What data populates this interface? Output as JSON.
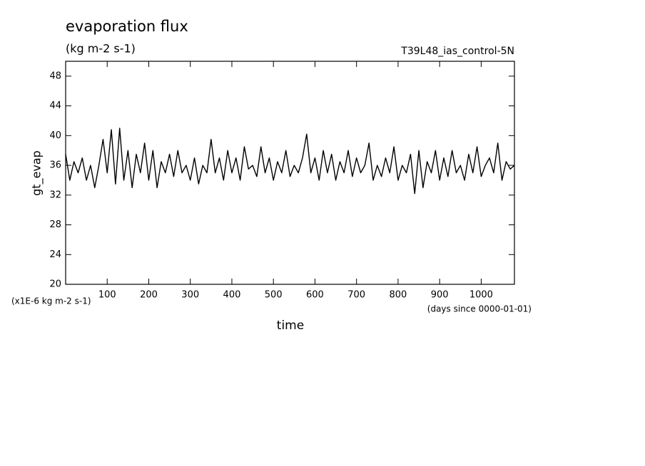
{
  "chart_data": {
    "type": "line",
    "title": "evaporation flux",
    "subtitle": "(kg m-2 s-1)",
    "annotation": "T39L48_ias_control-5N",
    "y_label": "gt_evap",
    "y_unit_label": "(x1E-6 kg m-2 s-1)",
    "x_label": "time",
    "x_unit_label": "(days since 0000-01-01)",
    "x": [
      0,
      10,
      20,
      30,
      40,
      50,
      60,
      70,
      80,
      90,
      100,
      110,
      120,
      130,
      140,
      150,
      160,
      170,
      180,
      190,
      200,
      210,
      220,
      230,
      240,
      250,
      260,
      270,
      280,
      290,
      300,
      310,
      320,
      330,
      340,
      350,
      360,
      370,
      380,
      390,
      400,
      410,
      420,
      430,
      440,
      450,
      460,
      470,
      480,
      490,
      500,
      510,
      520,
      530,
      540,
      550,
      560,
      570,
      580,
      590,
      600,
      610,
      620,
      630,
      640,
      650,
      660,
      670,
      680,
      690,
      700,
      710,
      720,
      730,
      740,
      750,
      760,
      770,
      780,
      790,
      800,
      810,
      820,
      830,
      840,
      850,
      860,
      870,
      880,
      890,
      900,
      910,
      920,
      930,
      940,
      950,
      960,
      970,
      980,
      990,
      1000,
      1010,
      1020,
      1030,
      1040,
      1050,
      1060,
      1070,
      1080
    ],
    "series": [
      {
        "name": "gt_evap",
        "color": "#000000",
        "values": [
          37.5,
          34,
          36.5,
          35,
          37,
          34,
          36,
          33,
          36,
          39.5,
          35,
          40.8,
          33.5,
          41,
          34,
          38,
          33,
          37.5,
          35,
          39,
          34,
          38,
          33,
          36.5,
          35,
          37.5,
          34.5,
          38,
          35,
          36,
          34,
          37,
          33.5,
          36,
          35,
          39.5,
          35,
          37,
          34,
          38,
          35,
          37,
          34,
          38.5,
          35.5,
          36,
          34.5,
          38.5,
          35,
          37,
          34,
          36.5,
          35,
          38,
          34.5,
          36,
          35,
          37,
          40.2,
          35,
          37,
          34,
          38,
          35,
          37.5,
          34,
          36.5,
          35,
          38,
          34.5,
          37,
          35,
          36,
          39,
          34,
          36,
          34.5,
          37,
          35,
          38.5,
          34,
          36,
          35,
          37.5,
          32.2,
          38,
          33,
          36.5,
          35,
          38,
          34,
          37,
          34.5,
          38,
          35,
          36,
          34,
          37.5,
          35,
          38.5,
          34.5,
          36,
          37,
          35,
          39,
          34,
          36.5,
          35.5,
          36
        ]
      }
    ],
    "xlim": [
      0,
      1080
    ],
    "xticks": [
      100,
      200,
      300,
      400,
      500,
      600,
      700,
      800,
      900,
      1000
    ],
    "ylim": [
      20,
      50
    ],
    "yticks": [
      20,
      24,
      28,
      32,
      36,
      40,
      44,
      48
    ]
  }
}
